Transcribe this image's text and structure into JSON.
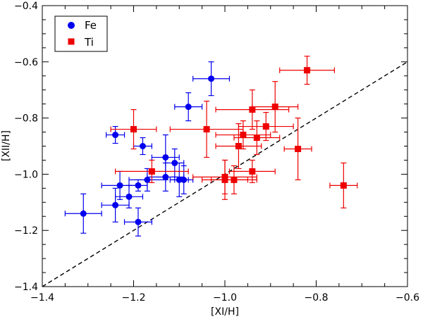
{
  "chart_data": {
    "type": "scatter",
    "xlabel": "[XI/H]",
    "ylabel": "[XII/H]",
    "xlim": [
      -1.4,
      -0.6
    ],
    "ylim": [
      -1.4,
      -0.4
    ],
    "x_ticks": [
      -1.4,
      -1.2,
      -1.0,
      -0.8,
      -0.6
    ],
    "x_tick_labels": [
      "−1.4",
      "−1.2",
      "−1.0",
      "−0.8",
      "−0.6"
    ],
    "y_ticks": [
      -1.4,
      -1.2,
      -1.0,
      -0.8,
      -0.6,
      -0.4
    ],
    "y_tick_labels": [
      "−1.4",
      "−1.2",
      "−1.0",
      "−0.8",
      "−0.6",
      "−0.4"
    ],
    "legend_position": "top-left",
    "reference_line": {
      "style": "dashed",
      "slope": 1,
      "intercept": 0,
      "color": "#000000"
    },
    "series": [
      {
        "name": "Fe",
        "marker": "circle",
        "color": "#0000ee",
        "points": [
          {
            "x": -1.31,
            "y": -1.14,
            "xerr": 0.04,
            "yerr": 0.07
          },
          {
            "x": -1.24,
            "y": -0.86,
            "xerr": 0.02,
            "yerr": 0.03
          },
          {
            "x": -1.24,
            "y": -1.11,
            "xerr": 0.03,
            "yerr": 0.06
          },
          {
            "x": -1.23,
            "y": -1.04,
            "xerr": 0.04,
            "yerr": 0.05
          },
          {
            "x": -1.21,
            "y": -1.08,
            "xerr": 0.03,
            "yerr": 0.04
          },
          {
            "x": -1.19,
            "y": -1.04,
            "xerr": 0.02,
            "yerr": 0.02
          },
          {
            "x": -1.19,
            "y": -1.17,
            "xerr": 0.03,
            "yerr": 0.05
          },
          {
            "x": -1.18,
            "y": -0.9,
            "xerr": 0.02,
            "yerr": 0.03
          },
          {
            "x": -1.17,
            "y": -1.02,
            "xerr": 0.04,
            "yerr": 0.04
          },
          {
            "x": -1.13,
            "y": -0.94,
            "xerr": 0.03,
            "yerr": 0.08
          },
          {
            "x": -1.13,
            "y": -1.01,
            "xerr": 0.04,
            "yerr": 0.05
          },
          {
            "x": -1.11,
            "y": -0.96,
            "xerr": 0.02,
            "yerr": 0.05
          },
          {
            "x": -1.1,
            "y": -1.02,
            "xerr": 0.02,
            "yerr": 0.06
          },
          {
            "x": -1.09,
            "y": -1.02,
            "xerr": 0.02,
            "yerr": 0.05
          },
          {
            "x": -1.08,
            "y": -0.76,
            "xerr": 0.03,
            "yerr": 0.05
          },
          {
            "x": -1.03,
            "y": -0.66,
            "xerr": 0.04,
            "yerr": 0.06
          }
        ]
      },
      {
        "name": "Ti",
        "marker": "square",
        "color": "#ee0000",
        "points": [
          {
            "x": -1.2,
            "y": -0.84,
            "xerr": 0.05,
            "yerr": 0.07
          },
          {
            "x": -1.16,
            "y": -0.99,
            "xerr": 0.08,
            "yerr": 0.04
          },
          {
            "x": -1.04,
            "y": -0.84,
            "xerr": 0.08,
            "yerr": 0.1
          },
          {
            "x": -1.0,
            "y": -1.01,
            "xerr": 0.07,
            "yerr": 0.06
          },
          {
            "x": -1.0,
            "y": -1.02,
            "xerr": 0.05,
            "yerr": 0.07
          },
          {
            "x": -0.98,
            "y": -1.02,
            "xerr": 0.05,
            "yerr": 0.05
          },
          {
            "x": -0.97,
            "y": -0.9,
            "xerr": 0.05,
            "yerr": 0.08
          },
          {
            "x": -0.96,
            "y": -0.86,
            "xerr": 0.06,
            "yerr": 0.05
          },
          {
            "x": -0.94,
            "y": -0.77,
            "xerr": 0.08,
            "yerr": 0.07
          },
          {
            "x": -0.94,
            "y": -0.99,
            "xerr": 0.05,
            "yerr": 0.04
          },
          {
            "x": -0.93,
            "y": -0.87,
            "xerr": 0.05,
            "yerr": 0.06
          },
          {
            "x": -0.91,
            "y": -0.83,
            "xerr": 0.06,
            "yerr": 0.05
          },
          {
            "x": -0.89,
            "y": -0.76,
            "xerr": 0.05,
            "yerr": 0.09
          },
          {
            "x": -0.84,
            "y": -0.91,
            "xerr": 0.03,
            "yerr": 0.11
          },
          {
            "x": -0.82,
            "y": -0.63,
            "xerr": 0.06,
            "yerr": 0.05
          },
          {
            "x": -0.74,
            "y": -1.04,
            "xerr": 0.03,
            "yerr": 0.08
          }
        ]
      }
    ]
  }
}
